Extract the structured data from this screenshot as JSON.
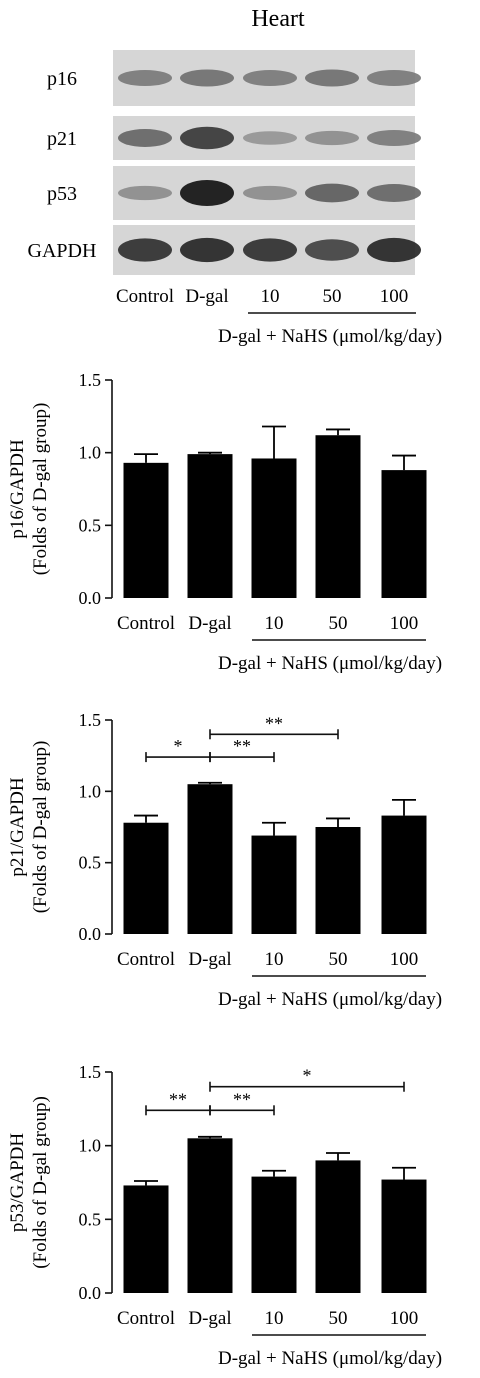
{
  "blot": {
    "title": "Heart",
    "rows": [
      {
        "label": "p16",
        "intensity": [
          0.45,
          0.5,
          0.45,
          0.5,
          0.45
        ]
      },
      {
        "label": "p21",
        "intensity": [
          0.55,
          0.8,
          0.3,
          0.35,
          0.45
        ]
      },
      {
        "label": "p53",
        "intensity": [
          0.35,
          1.0,
          0.35,
          0.6,
          0.55
        ]
      },
      {
        "label": "GAPDH",
        "intensity": [
          0.85,
          0.9,
          0.85,
          0.75,
          0.9
        ]
      }
    ],
    "lanes": [
      "Control",
      "D-gal",
      "10",
      "50",
      "100"
    ],
    "group_label": "D-gal + NaHS (μmol/kg/day)",
    "bracket_lanes": [
      2,
      4
    ]
  },
  "chart_data": [
    {
      "type": "bar",
      "ylabel": [
        "p16/GAPDH",
        "(Folds of D-gal group)"
      ],
      "categories": [
        "Control",
        "D-gal",
        "10",
        "50",
        "100"
      ],
      "values": [
        0.93,
        0.99,
        0.96,
        1.12,
        0.88
      ],
      "errors": [
        0.06,
        0.01,
        0.22,
        0.04,
        0.1
      ],
      "ylim": [
        0.0,
        1.5
      ],
      "yticks": [
        "0.0",
        "0.5",
        "1.0",
        "1.5"
      ],
      "group_label": "D-gal + NaHS (μmol/kg/day)",
      "bracket_categories": [
        2,
        4
      ],
      "significance": []
    },
    {
      "type": "bar",
      "ylabel": [
        "p21/GAPDH",
        "(Folds of D-gal group)"
      ],
      "categories": [
        "Control",
        "D-gal",
        "10",
        "50",
        "100"
      ],
      "values": [
        0.78,
        1.05,
        0.69,
        0.75,
        0.83
      ],
      "errors": [
        0.05,
        0.01,
        0.09,
        0.06,
        0.11
      ],
      "ylim": [
        0.0,
        1.5
      ],
      "yticks": [
        "0.0",
        "0.5",
        "1.0",
        "1.5"
      ],
      "group_label": "D-gal + NaHS (μmol/kg/day)",
      "bracket_categories": [
        2,
        4
      ],
      "significance": [
        {
          "from": 0,
          "to": 1,
          "y": 1.24,
          "label": "*"
        },
        {
          "from": 1,
          "to": 2,
          "y": 1.24,
          "label": "**"
        },
        {
          "from": 1,
          "to": 3,
          "y": 1.4,
          "label": "**"
        }
      ]
    },
    {
      "type": "bar",
      "ylabel": [
        "p53/GAPDH",
        "(Folds of D-gal group)"
      ],
      "categories": [
        "Control",
        "D-gal",
        "10",
        "50",
        "100"
      ],
      "values": [
        0.73,
        1.05,
        0.79,
        0.9,
        0.77
      ],
      "errors": [
        0.03,
        0.01,
        0.04,
        0.05,
        0.08
      ],
      "ylim": [
        0.0,
        1.5
      ],
      "yticks": [
        "0.0",
        "0.5",
        "1.0",
        "1.5"
      ],
      "group_label": "D-gal + NaHS (μmol/kg/day)",
      "bracket_categories": [
        2,
        4
      ],
      "significance": [
        {
          "from": 0,
          "to": 1,
          "y": 1.24,
          "label": "**"
        },
        {
          "from": 1,
          "to": 2,
          "y": 1.24,
          "label": "**"
        },
        {
          "from": 1,
          "to": 4,
          "y": 1.4,
          "label": "*"
        }
      ]
    }
  ]
}
